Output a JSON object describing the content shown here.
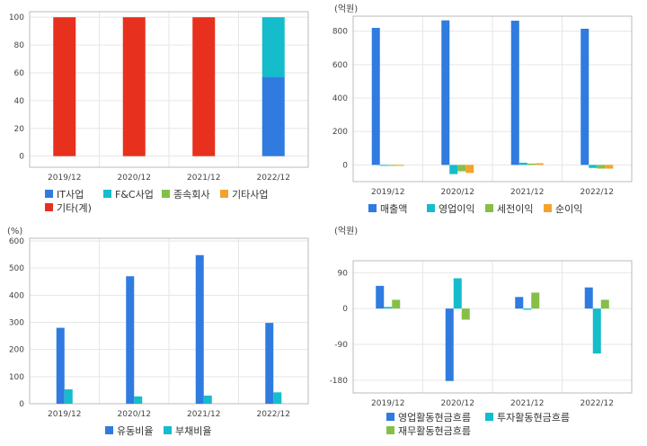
{
  "colors": {
    "blue": "#2f7be0",
    "cyan": "#14bccc",
    "green": "#86bf48",
    "orange": "#f2a42a",
    "red": "#e8301e",
    "grid": "#e6e6e6",
    "frame": "#bbbbbb"
  },
  "chart_data": [
    {
      "id": "c1",
      "type": "bar",
      "stacked": true,
      "unit_label": "",
      "categories": [
        "2019/12",
        "2020/12",
        "2021/12",
        "2022/12"
      ],
      "yticks": [
        0,
        20,
        40,
        60,
        80,
        100
      ],
      "ylim": [
        -8,
        104
      ],
      "series": [
        {
          "name": "IT사업",
          "color": "blue",
          "values": [
            0,
            0,
            0,
            57
          ]
        },
        {
          "name": "F&C사업",
          "color": "cyan",
          "values": [
            0,
            0,
            0,
            43
          ]
        },
        {
          "name": "종속회사",
          "color": "green",
          "values": [
            0,
            0,
            0,
            0
          ]
        },
        {
          "name": "기타사업",
          "color": "orange",
          "values": [
            0,
            0,
            0,
            0
          ]
        },
        {
          "name": "기타(계)",
          "color": "red",
          "values": [
            100,
            100,
            100,
            0
          ]
        }
      ],
      "legend_rows": [
        [
          "IT사업",
          "F&C사업",
          "종속회사",
          "기타사업"
        ],
        [
          "기타(계)"
        ]
      ]
    },
    {
      "id": "c2",
      "type": "bar",
      "stacked": false,
      "unit_label": "(억원)",
      "categories": [
        "2019/12",
        "2020/12",
        "2021/12",
        "2022/12"
      ],
      "yticks": [
        0,
        200,
        400,
        600,
        800
      ],
      "ylim": [
        -100,
        890
      ],
      "series": [
        {
          "name": "매출액",
          "color": "blue",
          "values": [
            820,
            865,
            863,
            815
          ]
        },
        {
          "name": "영업이익",
          "color": "cyan",
          "values": [
            -3,
            -55,
            13,
            -18
          ]
        },
        {
          "name": "세전이익",
          "color": "green",
          "values": [
            -5,
            -38,
            8,
            -22
          ]
        },
        {
          "name": "순이익",
          "color": "orange",
          "values": [
            -5,
            -48,
            10,
            -22
          ]
        }
      ],
      "legend_rows": [
        [
          "매출액",
          "영업이익",
          "세전이익",
          "순이익"
        ]
      ]
    },
    {
      "id": "c3",
      "type": "bar",
      "stacked": false,
      "unit_label": "(%)",
      "categories": [
        "2019/12",
        "2020/12",
        "2021/12",
        "2022/12"
      ],
      "yticks": [
        0,
        100,
        200,
        300,
        400,
        500,
        600
      ],
      "ylim": [
        0,
        610
      ],
      "series": [
        {
          "name": "유동비율",
          "color": "blue",
          "values": [
            280,
            470,
            548,
            298
          ]
        },
        {
          "name": "부채비율",
          "color": "cyan",
          "values": [
            53,
            27,
            30,
            42
          ]
        }
      ],
      "legend_rows": [
        [
          "유동비율",
          "부채비율"
        ]
      ]
    },
    {
      "id": "c4",
      "type": "bar",
      "stacked": false,
      "unit_label": "(억원)",
      "categories": [
        "2019/12",
        "2020/12",
        "2021/12",
        "2022/12"
      ],
      "yticks": [
        -180,
        -90,
        0,
        90
      ],
      "ylim": [
        -212,
        120
      ],
      "series": [
        {
          "name": "영업활동현금흐름",
          "color": "blue",
          "values": [
            57,
            -182,
            29,
            53
          ]
        },
        {
          "name": "투자활동현금흐름",
          "color": "cyan",
          "values": [
            4,
            76,
            -3,
            -113
          ]
        },
        {
          "name": "재무활동현금흐름",
          "color": "green",
          "values": [
            22,
            -28,
            40,
            22
          ]
        }
      ],
      "legend_rows": [
        [
          "영업활동현금흐름",
          "투자활동현금흐름"
        ],
        [
          "재무활동현금흐름"
        ]
      ]
    }
  ]
}
